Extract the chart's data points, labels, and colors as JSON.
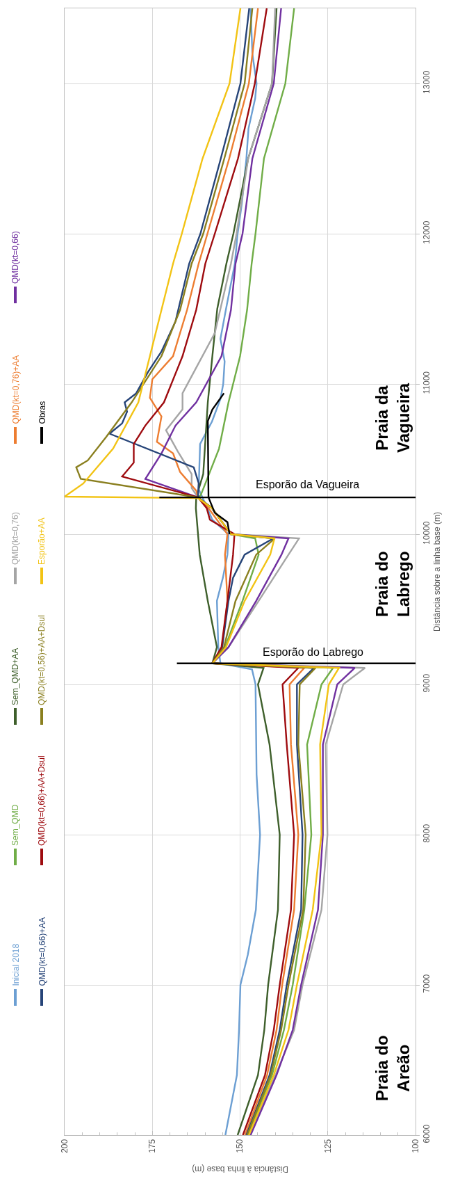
{
  "chart_data": {
    "type": "line",
    "xlabel": "Distância à linha base (m)",
    "ylabel": "Distância sobre a linha base (m)",
    "xlim": [
      200,
      100
    ],
    "xticks": [
      100,
      125,
      150,
      175,
      200
    ],
    "ylim": [
      6000,
      13500
    ],
    "yticks": [
      6000,
      7000,
      8000,
      9000,
      10000,
      11000,
      12000,
      13000
    ],
    "grid": true,
    "legend": "left",
    "marker": "none",
    "line_style": "solid",
    "series": [
      {
        "name": "Inicial 2018",
        "color": "#6c9fd3",
        "values": [
          6000,
          6400,
          6700,
          7000,
          7200,
          7500,
          8000,
          8400,
          9000,
          9100,
          9140,
          9248,
          9556,
          9710,
          9864,
          10000,
          10096,
          10234,
          10300,
          10600,
          10750,
          10900,
          11000,
          11150,
          11300,
          11500,
          11800,
          12000,
          12200,
          12500,
          12700,
          12900,
          13000,
          13200,
          13500
        ],
        "x": [
          154.2,
          150.9,
          150.3,
          149.9,
          147.8,
          145.5,
          144.3,
          145.3,
          145.6,
          146.6,
          155.6,
          156.2,
          156.6,
          154.9,
          153.6,
          153.3,
          157.9,
          160.5,
          161.8,
          161.4,
          158,
          155.6,
          154.8,
          154.4,
          155.6,
          154,
          151.5,
          150.7,
          149.5,
          148.2,
          147.6,
          145.7,
          145.3,
          146.5,
          147
        ]
      },
      {
        "name": "Sem_QMD",
        "color": "#70ad47",
        "values": [
          6000,
          6400,
          6700,
          7000,
          7500,
          8000,
          8600,
          9000,
          9110,
          9140,
          9248,
          9556,
          9864,
          9972,
          10000,
          10173,
          10245,
          10260,
          10569,
          10877,
          11185,
          11493,
          11801,
          12000,
          12500,
          13000,
          13500
        ],
        "x": [
          147.8,
          140.9,
          137.5,
          135,
          131.7,
          129.7,
          130.9,
          126.8,
          123.5,
          157.9,
          154.3,
          149.3,
          144.7,
          145.7,
          152.6,
          158,
          162,
          161.2,
          156,
          153.3,
          150,
          148,
          146.7,
          145.6,
          143.2,
          137.1,
          134.6
        ]
      },
      {
        "name": "Sem_QMD+AA",
        "color": "#3e5f2b",
        "values": [
          6000,
          6400,
          6700,
          7000,
          7500,
          8000,
          8600,
          9000,
          9110,
          9140,
          9248,
          9556,
          9864,
          10173,
          10245,
          10400,
          10877,
          11185,
          11500,
          11801,
          12000,
          12500,
          13000,
          13500
        ],
        "x": [
          150.7,
          144.9,
          143.1,
          142,
          139.2,
          138.7,
          141.6,
          144.9,
          143.3,
          157.9,
          156.6,
          159.2,
          161.5,
          162.6,
          162.5,
          160.5,
          159.2,
          157.9,
          156.5,
          153.9,
          151.9,
          147.7,
          140.9,
          139.6
        ]
      },
      {
        "name": "QMD(kt=0,76)",
        "color": "#a5a5a5",
        "values": [
          6000,
          6400,
          6700,
          7000,
          7500,
          8000,
          8600,
          9000,
          9110,
          9140,
          9248,
          9556,
          9864,
          9972,
          10000,
          10173,
          10245,
          10307,
          10400,
          10553,
          10692,
          10831,
          10938,
          11108,
          11339,
          11801,
          12000,
          12500,
          13000,
          13500
        ],
        "x": [
          147.2,
          139.9,
          134.6,
          132.2,
          126.8,
          125.1,
          125.6,
          120.6,
          114.4,
          157.9,
          153.3,
          144.7,
          136.2,
          133.2,
          152.6,
          158,
          162,
          163.8,
          163.8,
          167.8,
          171.1,
          166.4,
          166.4,
          162.5,
          157.2,
          152.6,
          151,
          147.7,
          140.9,
          140
        ]
      },
      {
        "name": "QMD(kt=0,76)+AA",
        "color": "#ed7d31",
        "values": [
          6000,
          6400,
          6700,
          7000,
          7500,
          8000,
          8600,
          9000,
          9110,
          9140,
          9248,
          9556,
          9864,
          10000,
          10173,
          10245,
          10290,
          10414,
          10538,
          10615,
          10784,
          10908,
          11031,
          11185,
          11493,
          11801,
          12000,
          12500,
          13000,
          13500
        ],
        "x": [
          148.6,
          142.3,
          139.6,
          138,
          134.6,
          133.4,
          135.5,
          135.9,
          131.7,
          157.9,
          155.1,
          153.6,
          154.3,
          153.6,
          159,
          162,
          162.5,
          167.1,
          169.1,
          173.7,
          172.4,
          175.7,
          175,
          169.1,
          165.1,
          161.8,
          159.3,
          153.1,
          147.5,
          144.9
        ]
      },
      {
        "name": "QMD(kt=0,66)",
        "color": "#7030a0",
        "values": [
          6000,
          6400,
          6700,
          7000,
          7500,
          8000,
          8600,
          9000,
          9110,
          9140,
          9248,
          9556,
          9864,
          9972,
          10000,
          10173,
          10245,
          10368,
          10538,
          10723,
          10877,
          11185,
          11493,
          11801,
          12000,
          12500,
          13000,
          13500
        ],
        "x": [
          147,
          139.6,
          135,
          132.6,
          127.8,
          126.4,
          126.4,
          122.3,
          117.3,
          157.9,
          153.3,
          145.4,
          138.2,
          136.2,
          152.6,
          158,
          162,
          177,
          172.4,
          168.4,
          162.5,
          155.3,
          152.6,
          151.3,
          149.3,
          146.5,
          140.4,
          138.3
        ]
      },
      {
        "name": "QMD(kt=0,66)+AA",
        "color": "#264478",
        "values": [
          6000,
          6400,
          6700,
          7000,
          7500,
          8000,
          8600,
          9000,
          9110,
          9140,
          9248,
          9556,
          9710,
          9864,
          9972,
          10000,
          10173,
          10245,
          10340,
          10445,
          10669,
          10738,
          10815,
          10877,
          10938,
          11077,
          11216,
          11416,
          11801,
          12000,
          12500,
          13000,
          13500
        ],
        "x": [
          148.2,
          141.6,
          138.7,
          136.7,
          132.6,
          132.2,
          133.8,
          133.8,
          128.9,
          157.9,
          155.1,
          153.3,
          152,
          148.7,
          140.5,
          152.6,
          158,
          162,
          161.8,
          163.2,
          187.2,
          183.6,
          182.2,
          182.9,
          179.6,
          176.3,
          172.4,
          168.4,
          164.5,
          161.3,
          155.5,
          149.9,
          147.4
        ]
      },
      {
        "name": "QMD(kt=0,66)+AA+Dsul",
        "color": "#9e0b0f",
        "values": [
          6000,
          6400,
          6700,
          7000,
          7500,
          8000,
          8600,
          9000,
          9110,
          9140,
          9248,
          9556,
          9864,
          10000,
          10096,
          10173,
          10245,
          10384,
          10476,
          10600,
          10723,
          10877,
          11185,
          11493,
          11801,
          12000,
          12500,
          13000,
          13500
        ],
        "x": [
          149.2,
          142.9,
          140.4,
          138.7,
          135.5,
          134.6,
          136.7,
          137.9,
          133.4,
          157.9,
          155.3,
          153.6,
          152,
          151.6,
          158.6,
          159.5,
          162,
          183.6,
          180.3,
          180.3,
          177,
          171.7,
          166.4,
          162.5,
          159.9,
          157.2,
          150.6,
          145.8,
          142.4
        ]
      },
      {
        "name": "QMD(kt=0,56)+AA+Dsul",
        "color": "#8a7f1f",
        "values": [
          6000,
          6400,
          6700,
          7000,
          7500,
          8000,
          8600,
          9000,
          9110,
          9140,
          9248,
          9556,
          9864,
          9972,
          10000,
          10173,
          10245,
          10368,
          10445,
          10491,
          10646,
          10877,
          11185,
          11493,
          11801,
          12000,
          12500,
          13000,
          13500
        ],
        "x": [
          148,
          141.3,
          138.3,
          136.2,
          132,
          131.3,
          133.4,
          133,
          128.5,
          157.9,
          154.6,
          151.3,
          145.4,
          140.1,
          152.6,
          158,
          162,
          195.4,
          196.7,
          193.4,
          188.2,
          180.9,
          172.4,
          167.1,
          163.8,
          160.5,
          154.5,
          148.7,
          146.5
        ]
      },
      {
        "name": "Esporão+AA",
        "color": "#f2c314",
        "values": [
          6000,
          6400,
          6700,
          7000,
          7500,
          8000,
          8600,
          9000,
          9110,
          9140,
          9248,
          9556,
          9864,
          9972,
          10000,
          10173,
          10240,
          10250,
          10337,
          10569,
          10877,
          11185,
          11493,
          11801,
          12000,
          12500,
          13000,
          13500
        ],
        "x": [
          147.5,
          140.4,
          136.2,
          133.8,
          129.3,
          126.8,
          127.2,
          124.7,
          121.8,
          157.9,
          154,
          148.7,
          141.4,
          140.2,
          152.6,
          158,
          162,
          200,
          194.7,
          186.2,
          179,
          175.7,
          172.4,
          169.1,
          166.6,
          160.7,
          153,
          149.9
        ]
      },
      {
        "name": "Obras",
        "color": "#000000",
        "values": [
          10000,
          10080,
          10142,
          10245,
          10753,
          10830,
          10938
        ],
        "x": [
          153,
          153.6,
          157.2,
          159,
          159.2,
          157.9,
          154.6
        ]
      },
      {
        "color": "#000000",
        "values": [
          9140,
          9140
        ],
        "x": [
          168,
          100
        ]
      },
      {
        "color": "#000000",
        "values": [
          10245,
          10245
        ],
        "x": [
          173,
          100
        ]
      }
    ],
    "annotations": [
      "Esporão do Labrego",
      "Esporão da Vagueira",
      "Praia do Areão",
      "Praia do Labrego",
      "Praia da Vagueira"
    ]
  }
}
